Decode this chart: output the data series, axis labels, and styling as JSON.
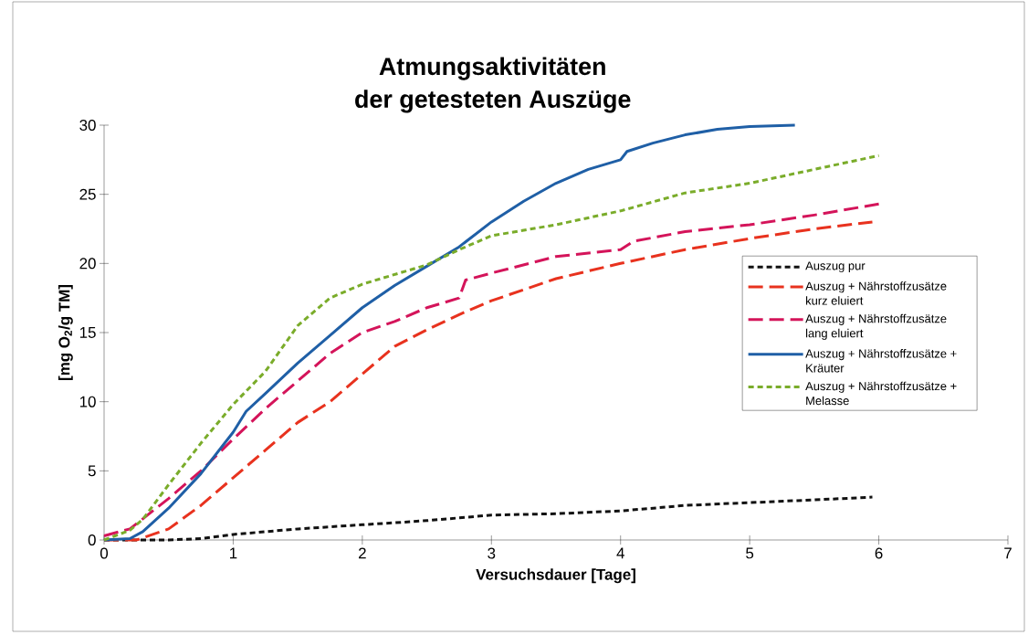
{
  "chart_data": {
    "type": "line",
    "title": "Atmungsaktivitäten der getesteten Auszüge",
    "xlabel": "Versuchsdauer [Tage]",
    "ylabel": "[mg O$_{2}$/g TM]",
    "xlim": [
      0,
      7
    ],
    "ylim": [
      0,
      30
    ],
    "xticks": [
      0,
      1,
      2,
      3,
      4,
      5,
      6,
      7
    ],
    "yticks": [
      0,
      5,
      10,
      15,
      20,
      25,
      30
    ],
    "grid": false,
    "legend": "right",
    "series": [
      {
        "name": "Auszug pur",
        "color": "#111111",
        "line_style": "dotted",
        "x": [
          0,
          0.5,
          0.75,
          1,
          1.5,
          2,
          2.5,
          3,
          3.5,
          4,
          4.5,
          5,
          5.5,
          5.95
        ],
        "values": [
          0,
          0,
          0.1,
          0.4,
          0.8,
          1.1,
          1.4,
          1.8,
          1.9,
          2.1,
          2.5,
          2.7,
          2.9,
          3.1
        ]
      },
      {
        "name": "Auszug + Nährstoffzusätze kurz eluiert",
        "color": "#e8321e",
        "line_style": "dashed",
        "x": [
          0,
          0.25,
          0.5,
          0.75,
          1,
          1.25,
          1.5,
          1.75,
          2,
          2.25,
          2.5,
          2.75,
          3,
          3.5,
          4,
          4.5,
          5,
          5.5,
          5.95
        ],
        "values": [
          0,
          0,
          0.8,
          2.5,
          4.5,
          6.5,
          8.5,
          10,
          12,
          14,
          15.2,
          16.3,
          17.3,
          18.9,
          20,
          21,
          21.8,
          22.5,
          23
        ]
      },
      {
        "name": "Auszug + Nährstoffzusätze lang eluiert",
        "color": "#d4145a",
        "line_style": "dashed",
        "x": [
          0,
          0.2,
          0.5,
          0.75,
          1,
          1.25,
          1.5,
          1.75,
          2,
          2.25,
          2.5,
          2.75,
          2.8,
          3,
          3.5,
          4,
          4.1,
          4.5,
          5,
          5.5,
          6
        ],
        "values": [
          0.3,
          0.8,
          3,
          5,
          7.3,
          9.5,
          11.5,
          13.5,
          15,
          15.8,
          16.8,
          17.5,
          18.8,
          19.3,
          20.5,
          21,
          21.6,
          22.3,
          22.8,
          23.5,
          24.3
        ]
      },
      {
        "name": "Auszug + Nährstoffzusätze + Kräuter",
        "color": "#1f5fa6",
        "line_style": "solid",
        "x": [
          0,
          0.2,
          0.3,
          0.5,
          0.75,
          1,
          1.1,
          1.25,
          1.5,
          1.75,
          2,
          2.25,
          2.5,
          2.75,
          3,
          3.25,
          3.5,
          3.75,
          4,
          4.05,
          4.25,
          4.5,
          4.75,
          5,
          5.35
        ],
        "values": [
          0,
          0.1,
          0.6,
          2.3,
          4.8,
          7.8,
          9.3,
          10.6,
          12.8,
          14.8,
          16.8,
          18.4,
          19.8,
          21.2,
          23,
          24.5,
          25.8,
          26.8,
          27.5,
          28.1,
          28.7,
          29.3,
          29.7,
          29.9,
          30
        ]
      },
      {
        "name": "Auszug + Nährstoffzusätze + Melasse",
        "color": "#7aac2a",
        "line_style": "dotted",
        "x": [
          0,
          0.2,
          0.3,
          0.5,
          0.75,
          1,
          1.25,
          1.5,
          1.75,
          2,
          2.25,
          2.5,
          2.75,
          3,
          3.5,
          4,
          4.5,
          5,
          5.5,
          6
        ],
        "values": [
          0,
          0.7,
          1.5,
          4,
          7,
          9.8,
          12.2,
          15.5,
          17.5,
          18.5,
          19.2,
          19.9,
          21,
          22,
          22.8,
          23.8,
          25.1,
          25.8,
          26.8,
          27.8
        ]
      }
    ]
  }
}
